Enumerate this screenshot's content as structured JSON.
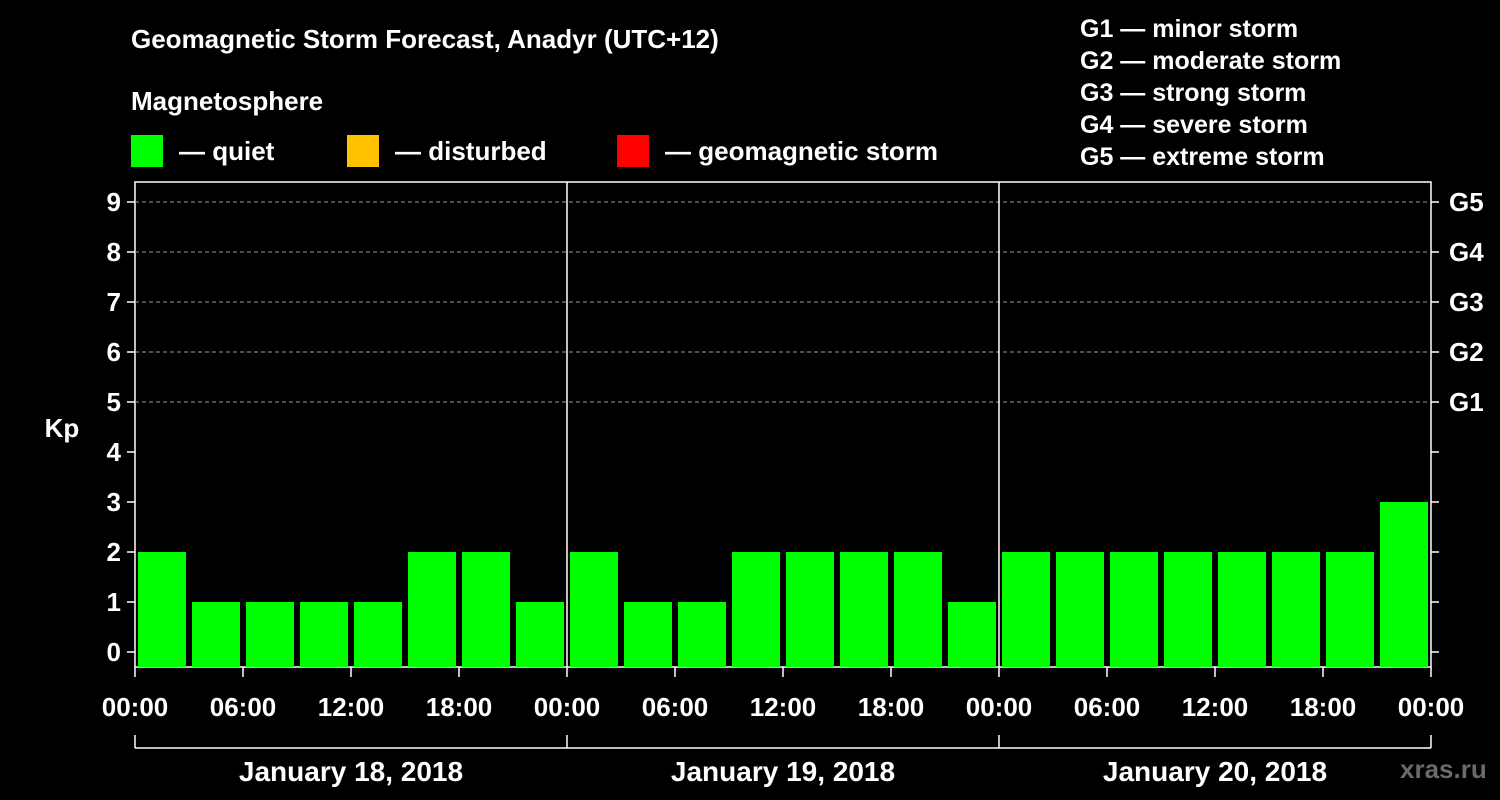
{
  "header": {
    "title": "Geomagnetic Storm Forecast, Anadyr (UTC+12)",
    "magnetosphere_label": "Magnetosphere"
  },
  "legend": [
    {
      "label": "— quiet",
      "color": "#00ff00"
    },
    {
      "label": "— disturbed",
      "color": "#ffc000"
    },
    {
      "label": "— geomagnetic storm",
      "color": "#ff0000"
    }
  ],
  "storm_scale": [
    "G1 — minor storm",
    "G2 — moderate storm",
    "G3 — strong storm",
    "G4 — severe storm",
    "G5 — extreme storm"
  ],
  "watermark": "xras.ru",
  "chart_data": {
    "type": "bar",
    "ylabel": "Kp",
    "ylim": [
      0,
      9
    ],
    "yticks": [
      "0",
      "1",
      "2",
      "3",
      "4",
      "5",
      "6",
      "7",
      "8",
      "9"
    ],
    "right_ticks": [
      {
        "kp": 5,
        "label": "G1"
      },
      {
        "kp": 6,
        "label": "G2"
      },
      {
        "kp": 7,
        "label": "G3"
      },
      {
        "kp": 8,
        "label": "G4"
      },
      {
        "kp": 9,
        "label": "G5"
      }
    ],
    "xtick_labels": [
      "00:00",
      "06:00",
      "12:00",
      "18:00",
      "00:00",
      "06:00",
      "12:00",
      "18:00",
      "00:00",
      "06:00",
      "12:00",
      "18:00",
      "00:00"
    ],
    "days": [
      "January 18, 2018",
      "January 19, 2018",
      "January 20, 2018"
    ],
    "interval_hours": 3,
    "values": [
      2,
      1,
      1,
      1,
      1,
      2,
      2,
      1,
      2,
      1,
      1,
      2,
      2,
      2,
      2,
      1,
      2,
      2,
      2,
      2,
      2,
      2,
      2,
      3
    ],
    "bar_color": "#00ff00",
    "grid": "dashed at Kp 5-9"
  }
}
